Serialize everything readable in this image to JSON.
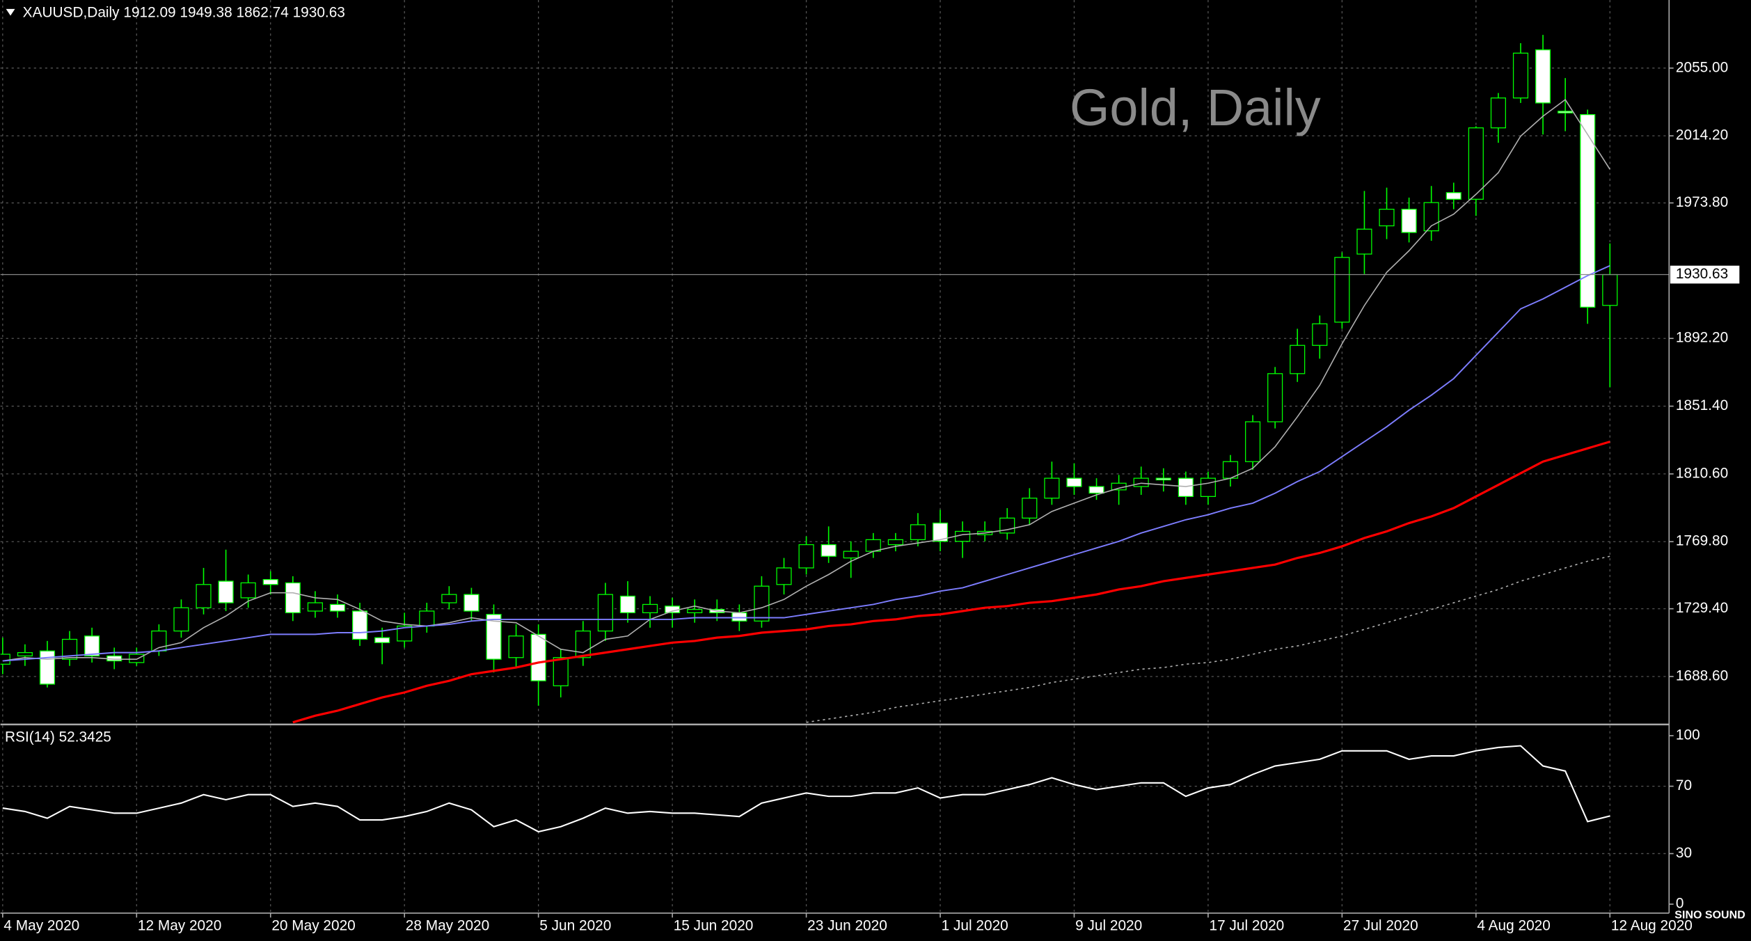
{
  "chart_data": {
    "type": "candlestick",
    "header": "XAUUSD,Daily  1912.09 1949.38 1862.74 1930.63",
    "watermark": "Gold, Daily",
    "logo_text": "SINO SOUND",
    "categories": [
      "4 May 2020",
      null,
      null,
      null,
      null,
      null,
      "12 May 2020",
      null,
      null,
      null,
      null,
      null,
      "20 May 2020",
      null,
      null,
      null,
      null,
      null,
      "28 May 2020",
      null,
      null,
      null,
      null,
      null,
      "5 Jun 2020",
      null,
      null,
      null,
      null,
      null,
      "15 Jun 2020",
      null,
      null,
      null,
      null,
      null,
      "23 Jun 2020",
      null,
      null,
      null,
      null,
      null,
      "1 Jul 2020",
      null,
      null,
      null,
      null,
      null,
      "9 Jul 2020",
      null,
      null,
      null,
      null,
      null,
      "17 Jul 2020",
      null,
      null,
      null,
      null,
      null,
      "27 Jul 2020",
      null,
      null,
      null,
      null,
      null,
      "4 Aug 2020",
      null,
      null,
      null,
      null,
      null,
      "12 Aug 2020"
    ],
    "candles": {
      "up_color": "#00ff00",
      "down_fill": "#ffffff",
      "up_fill": "#000000",
      "open": [
        1696,
        1701,
        1704,
        1699,
        1713,
        1701,
        1697,
        1704,
        1716,
        1730,
        1746,
        1736,
        1747,
        1745,
        1728,
        1732,
        1728,
        1712,
        1710,
        1719,
        1733,
        1738,
        1726,
        1700,
        1714,
        1683,
        1700,
        1716,
        1737,
        1727,
        1731,
        1727,
        1729,
        1727,
        1722,
        1744,
        1754,
        1768,
        1760,
        1764,
        1768,
        1771,
        1781,
        1770,
        1774,
        1775,
        1784,
        1796,
        1808,
        1803,
        1801,
        1803,
        1808,
        1808,
        1797,
        1808,
        1818,
        1842,
        1871,
        1888,
        1902,
        1943,
        1960,
        1970,
        1957,
        1980,
        1976,
        2019,
        2037,
        2066,
        2029,
        2027,
        1912.09
      ],
      "high": [
        1712,
        1708,
        1710,
        1716,
        1718,
        1706,
        1706,
        1720,
        1735,
        1754,
        1765,
        1750,
        1752,
        1749,
        1740,
        1738,
        1733,
        1718,
        1727,
        1733,
        1743,
        1742,
        1732,
        1720,
        1720,
        1705,
        1722,
        1745,
        1746,
        1737,
        1736,
        1735,
        1735,
        1732,
        1749,
        1760,
        1773,
        1779,
        1770,
        1775,
        1775,
        1787,
        1789,
        1782,
        1782,
        1790,
        1802,
        1818,
        1817,
        1808,
        1810,
        1815,
        1814,
        1812,
        1812,
        1822,
        1846,
        1875,
        1898,
        1906,
        1944,
        1981,
        1983,
        1977,
        1984,
        1986,
        2020,
        2040,
        2070,
        2075,
        2049,
        2030,
        1949.38
      ],
      "low": [
        1690,
        1695,
        1682,
        1695,
        1697,
        1693,
        1695,
        1701,
        1712,
        1726,
        1728,
        1730,
        1738,
        1722,
        1724,
        1724,
        1707,
        1696,
        1706,
        1715,
        1729,
        1722,
        1691,
        1694,
        1671,
        1676,
        1695,
        1710,
        1721,
        1718,
        1718,
        1721,
        1722,
        1716,
        1718,
        1738,
        1750,
        1757,
        1748,
        1760,
        1764,
        1767,
        1764,
        1760,
        1770,
        1771,
        1780,
        1792,
        1798,
        1795,
        1792,
        1798,
        1800,
        1792,
        1792,
        1803,
        1813,
        1838,
        1866,
        1880,
        1898,
        1931,
        1952,
        1950,
        1951,
        1970,
        1966,
        2010,
        2034,
        2015,
        2017,
        1901,
        1862.74
      ],
      "close": [
        1702,
        1703,
        1684,
        1711,
        1701,
        1698,
        1702,
        1716,
        1730,
        1744,
        1733,
        1745,
        1744,
        1727,
        1733,
        1728,
        1711,
        1709,
        1719,
        1728,
        1738,
        1728,
        1699,
        1713,
        1686,
        1700,
        1716,
        1738,
        1727,
        1732,
        1727,
        1729,
        1727,
        1722,
        1743,
        1754,
        1768,
        1761,
        1764,
        1771,
        1771,
        1780,
        1770,
        1776,
        1776,
        1784,
        1796,
        1808,
        1803,
        1799,
        1805,
        1808,
        1807,
        1797,
        1808,
        1818,
        1842,
        1871,
        1888,
        1901,
        1941,
        1958,
        1970,
        1956,
        1974,
        1976,
        2019,
        2037,
        2064,
        2034,
        2028,
        1911,
        1930.63
      ]
    },
    "lines": [
      {
        "color": "#b0b0b0",
        "width": 1,
        "dash": false,
        "values": [
          1698,
          1700,
          1699,
          1700,
          1700,
          1699,
          1699,
          1706,
          1709,
          1718,
          1725,
          1734,
          1739,
          1739,
          1736,
          1735,
          1729,
          1722,
          1720,
          1719,
          1721,
          1724,
          1722,
          1721,
          1713,
          1705,
          1703,
          1711,
          1713,
          1723,
          1728,
          1731,
          1728,
          1727,
          1730,
          1735,
          1743,
          1750,
          1758,
          1764,
          1767,
          1769,
          1771,
          1774,
          1775,
          1777,
          1780,
          1788,
          1793,
          1798,
          1802,
          1805,
          1804,
          1803,
          1805,
          1808,
          1814,
          1827,
          1845,
          1864,
          1889,
          1912,
          1932,
          1945,
          1960,
          1967,
          1979,
          1992,
          2014,
          2026,
          2036,
          2015,
          1994
        ]
      },
      {
        "color": "#7d7dff",
        "width": 1.2,
        "dash": false,
        "values": [
          1698,
          1699,
          1700,
          1701,
          1702,
          1703,
          1703,
          1704,
          1706,
          1708,
          1710,
          1712,
          1714,
          1714,
          1714,
          1715,
          1715,
          1716,
          1718,
          1719,
          1720,
          1722,
          1723,
          1723,
          1723,
          1723,
          1723,
          1723,
          1723,
          1723,
          1723,
          1724,
          1724,
          1724,
          1724,
          1724,
          1726,
          1728,
          1730,
          1732,
          1735,
          1737,
          1740,
          1742,
          1746,
          1750,
          1754,
          1758,
          1762,
          1766,
          1770,
          1775,
          1779,
          1783,
          1786,
          1790,
          1793,
          1799,
          1806,
          1812,
          1821,
          1830,
          1839,
          1849,
          1858,
          1868,
          1882,
          1896,
          1910,
          1916,
          1923,
          1930,
          1936
        ]
      },
      {
        "color": "#ff0000",
        "width": 2,
        "dash": false,
        "values": [
          null,
          null,
          null,
          null,
          null,
          null,
          null,
          null,
          null,
          null,
          null,
          null,
          null,
          1661,
          1665,
          1668,
          1672,
          1676,
          1679,
          1683,
          1686,
          1690,
          1692,
          1694,
          1697,
          1699,
          1701,
          1703,
          1705,
          1707,
          1709,
          1710,
          1712,
          1713,
          1715,
          1716,
          1717,
          1719,
          1720,
          1722,
          1723,
          1725,
          1726,
          1728,
          1730,
          1731,
          1733,
          1734,
          1736,
          1738,
          1741,
          1743,
          1746,
          1748,
          1750,
          1752,
          1754,
          1756,
          1760,
          1763,
          1767,
          1772,
          1776,
          1781,
          1785,
          1790,
          1797,
          1804,
          1811,
          1818,
          1822,
          1826,
          1830
        ]
      },
      {
        "color": "#b0b0b0",
        "width": 1,
        "dash": true,
        "values": [
          null,
          null,
          null,
          null,
          null,
          null,
          null,
          null,
          null,
          null,
          null,
          null,
          null,
          null,
          null,
          null,
          null,
          null,
          null,
          null,
          null,
          null,
          null,
          null,
          null,
          null,
          null,
          null,
          null,
          null,
          null,
          null,
          null,
          null,
          null,
          null,
          1661,
          1663,
          1665,
          1667,
          1670,
          1672,
          1674,
          1676,
          1678,
          1680,
          1682,
          1685,
          1687,
          1689,
          1691,
          1693,
          1694,
          1696,
          1697,
          1699,
          1702,
          1705,
          1707,
          1710,
          1713,
          1717,
          1721,
          1725,
          1729,
          1733,
          1737,
          1741,
          1746,
          1750,
          1754,
          1758,
          1761
        ]
      }
    ],
    "ylim": [
      1660.4,
      2096.0
    ],
    "yticks": [
      {
        "value": 2055,
        "label": "2055.00"
      },
      {
        "value": 2014.2,
        "label": "2014.20"
      },
      {
        "value": 1973.8,
        "label": "1973.80"
      },
      {
        "value": 1892.2,
        "label": "1892.20"
      },
      {
        "value": 1851.4,
        "label": "1851.40"
      },
      {
        "value": 1810.6,
        "label": "1810.60"
      },
      {
        "value": 1769.8,
        "label": "1769.80"
      },
      {
        "value": 1729.4,
        "label": "1729.40"
      },
      {
        "value": 1688.6,
        "label": "1688.60"
      }
    ],
    "grid": true,
    "rsi": {
      "label": "RSI(14) 52.3425",
      "color": "#ffffff",
      "ylim": [
        -5.3,
        106
      ],
      "yticks": [
        100,
        70,
        30,
        0
      ],
      "values": [
        57,
        55,
        51,
        58,
        56,
        54,
        54,
        57,
        60,
        65,
        62,
        65,
        65,
        58,
        60,
        58,
        50,
        50,
        52,
        55,
        60,
        56,
        46,
        50,
        43,
        46,
        51,
        57,
        54,
        55,
        54,
        54,
        53,
        52,
        60,
        63,
        66,
        64,
        64,
        66,
        66,
        69,
        63,
        65,
        65,
        68,
        71,
        75,
        71,
        68,
        70,
        72,
        72,
        64,
        69,
        71,
        77,
        82,
        84,
        86,
        91,
        91,
        91,
        86,
        88,
        88,
        91,
        93,
        94,
        82,
        79,
        49,
        52.3425
      ]
    }
  }
}
